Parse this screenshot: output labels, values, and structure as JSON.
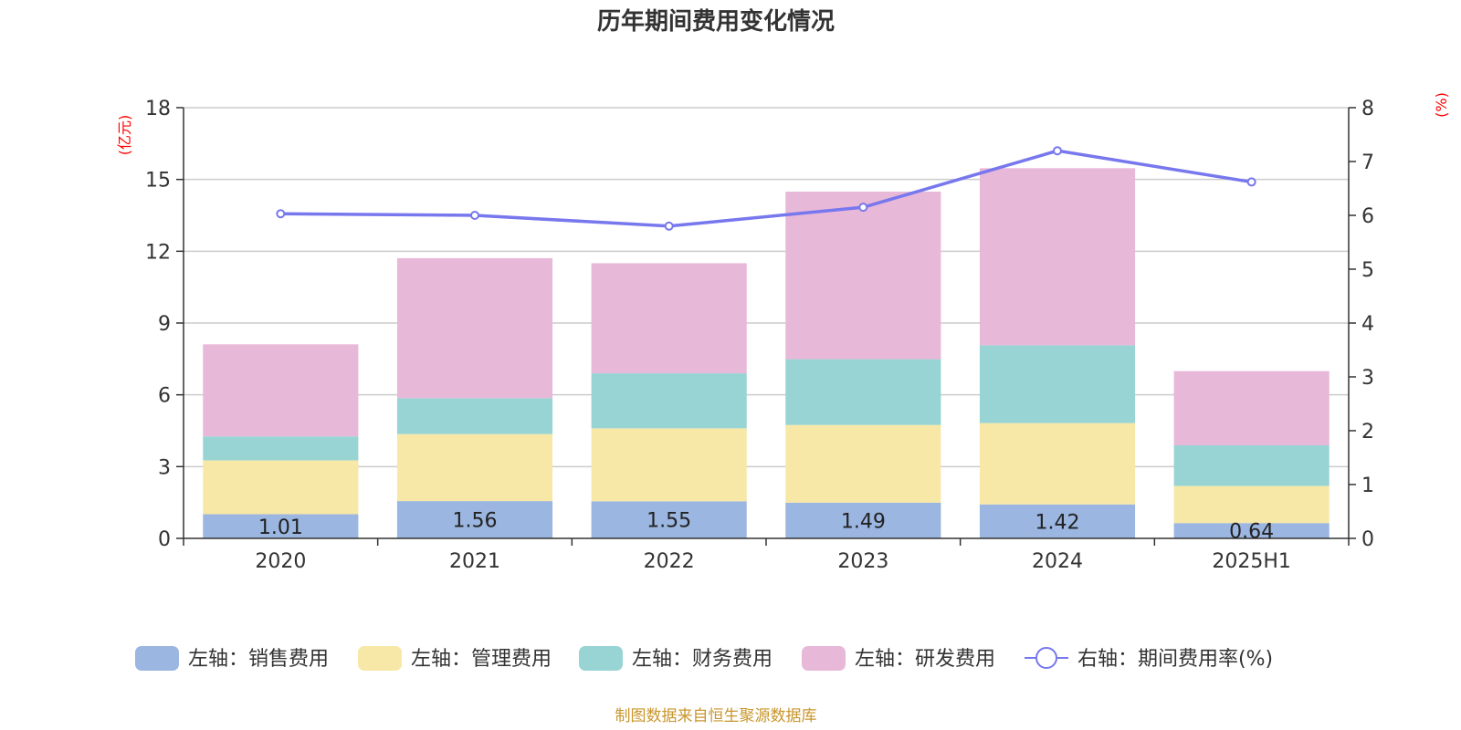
{
  "chart_data": {
    "title": "历年期间费用变化情况",
    "type": "bar",
    "categories": [
      "2020",
      "2021",
      "2022",
      "2023",
      "2024",
      "2025H1"
    ],
    "left_axis": {
      "unit": "(亿元)",
      "ylim": [
        0,
        18
      ],
      "ticks": [
        "0",
        "3",
        "6",
        "9",
        "12",
        "15",
        "18"
      ]
    },
    "right_axis": {
      "unit": "(%)",
      "ylim": [
        0,
        8
      ],
      "ticks": [
        "0",
        "1",
        "2",
        "3",
        "4",
        "5",
        "6",
        "7",
        "8"
      ]
    },
    "grid": true,
    "legend_position": "bottom",
    "series": [
      {
        "name": "左轴：销售费用",
        "type": "bar",
        "stack": "left",
        "color": "#9bb6e0",
        "values": [
          1.01,
          1.56,
          1.55,
          1.49,
          1.42,
          0.64
        ],
        "data_labels": [
          "1.01",
          "1.56",
          "1.55",
          "1.49",
          "1.42",
          "0.64"
        ]
      },
      {
        "name": "左轴：管理费用",
        "type": "bar",
        "stack": "left",
        "color": "#f7e8a8",
        "values": [
          2.25,
          2.8,
          3.05,
          3.25,
          3.4,
          1.55
        ]
      },
      {
        "name": "左轴：财务费用",
        "type": "bar",
        "stack": "left",
        "color": "#98d4d4",
        "values": [
          1.0,
          1.5,
          2.3,
          2.75,
          3.25,
          1.7
        ]
      },
      {
        "name": "左轴：研发费用",
        "type": "bar",
        "stack": "left",
        "color": "#e8b8d8",
        "values": [
          3.85,
          5.85,
          4.6,
          7.0,
          7.4,
          3.1
        ]
      },
      {
        "name": "右轴：期间费用率(%)",
        "type": "line",
        "axis": "right",
        "color": "#7777ee",
        "values": [
          6.03,
          6.0,
          5.8,
          6.15,
          7.2,
          6.62
        ]
      }
    ]
  },
  "source_text": "制图数据来自恒生聚源数据库"
}
